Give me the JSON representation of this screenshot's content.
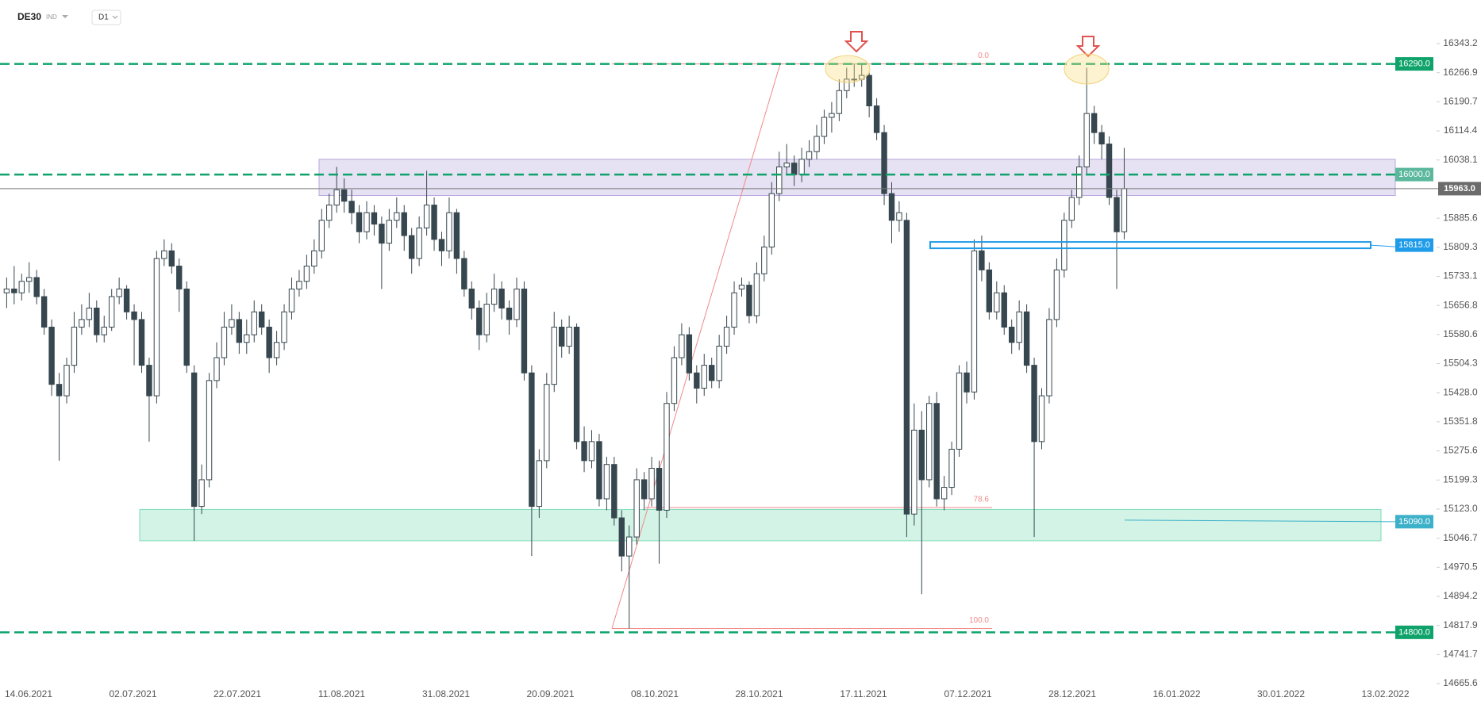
{
  "header": {
    "symbol": "DE30",
    "class": "IND",
    "timeframe": "D1"
  },
  "chart_data": {
    "type": "candlestick",
    "ylim": [
      14665.6,
      16343.2
    ],
    "yticks": [
      16343.2,
      16266.9,
      16190.7,
      16114.4,
      16038.1,
      15885.6,
      15809.3,
      15733.1,
      15656.8,
      15580.6,
      15504.3,
      {
        "value": 15428,
        "label": "15428.0"
      },
      15351.8,
      15275.6,
      15199.3,
      {
        "value": 15123,
        "label": "15123.0"
      },
      15046.7,
      14970.5,
      14894.2,
      14817.9,
      14741.7,
      14665.6
    ],
    "xtick_labels": [
      "14.06.2021",
      "02.07.2021",
      "22.07.2021",
      "11.08.2021",
      "31.08.2021",
      "20.09.2021",
      "08.10.2021",
      "28.10.2021",
      "17.11.2021",
      "07.12.2021",
      "28.12.2021",
      "16.01.2022",
      "30.01.2022",
      "13.02.2022"
    ],
    "up_color": "#ffffff",
    "down_color": "#37474f",
    "edge_color": "#37474f",
    "levels": [
      {
        "price": 16290,
        "label": "16290.0",
        "color": "#0fa36b",
        "line": "dashed"
      },
      {
        "price": 16000,
        "label": "16000.0",
        "color": "#5cb89d",
        "line": "dashed"
      },
      {
        "price": 15963,
        "label": "15963.0",
        "color": "#6b6b6b",
        "line": "current"
      },
      {
        "price": 15815,
        "label": "15815.0",
        "color": "#1e9be9",
        "line": "box"
      },
      {
        "price": 15090,
        "label": "15090.0",
        "color": "#3db1c9",
        "line": "short"
      },
      {
        "price": 14800,
        "label": "14800.0",
        "color": "#0fa36b",
        "line": "dashed"
      }
    ],
    "zones": [
      {
        "low": 15945,
        "high": 16040,
        "color": "#b6a8dc"
      },
      {
        "low": 15040,
        "high": 15122,
        "color": "#7fdcb8"
      }
    ],
    "fib": [
      {
        "label": "0.0",
        "price": 16290
      },
      {
        "label": "78.6",
        "price": 15127
      },
      {
        "label": "100.0",
        "price": 14810
      }
    ],
    "ohlc": [
      [
        15690,
        15730,
        15650,
        15700
      ],
      [
        15700,
        15760,
        15660,
        15690
      ],
      [
        15690,
        15740,
        15670,
        15720
      ],
      [
        15720,
        15770,
        15690,
        15730
      ],
      [
        15730,
        15750,
        15660,
        15680
      ],
      [
        15680,
        15700,
        15580,
        15600
      ],
      [
        15600,
        15620,
        15420,
        15450
      ],
      [
        15450,
        15480,
        15250,
        15420
      ],
      [
        15420,
        15520,
        15400,
        15500
      ],
      [
        15500,
        15640,
        15480,
        15600
      ],
      [
        15600,
        15660,
        15580,
        15620
      ],
      [
        15620,
        15690,
        15600,
        15650
      ],
      [
        15650,
        15670,
        15560,
        15580
      ],
      [
        15580,
        15630,
        15560,
        15600
      ],
      [
        15600,
        15700,
        15590,
        15680
      ],
      [
        15680,
        15730,
        15660,
        15700
      ],
      [
        15700,
        15710,
        15620,
        15640
      ],
      [
        15640,
        15660,
        15500,
        15620
      ],
      [
        15620,
        15640,
        15480,
        15500
      ],
      [
        15500,
        15520,
        15300,
        15420
      ],
      [
        15420,
        15800,
        15400,
        15780
      ],
      [
        15780,
        15830,
        15760,
        15800
      ],
      [
        15800,
        15820,
        15740,
        15760
      ],
      [
        15760,
        15780,
        15640,
        15700
      ],
      [
        15700,
        15720,
        15480,
        15500
      ],
      [
        15480,
        15500,
        15040,
        15130
      ],
      [
        15130,
        15240,
        15110,
        15200
      ],
      [
        15200,
        15480,
        15180,
        15460
      ],
      [
        15460,
        15560,
        15440,
        15520
      ],
      [
        15520,
        15640,
        15500,
        15600
      ],
      [
        15600,
        15660,
        15580,
        15620
      ],
      [
        15620,
        15640,
        15530,
        15560
      ],
      [
        15560,
        15620,
        15530,
        15580
      ],
      [
        15580,
        15670,
        15560,
        15640
      ],
      [
        15640,
        15660,
        15580,
        15600
      ],
      [
        15600,
        15620,
        15480,
        15520
      ],
      [
        15520,
        15590,
        15500,
        15560
      ],
      [
        15560,
        15660,
        15540,
        15640
      ],
      [
        15640,
        15730,
        15620,
        15700
      ],
      [
        15700,
        15750,
        15680,
        15720
      ],
      [
        15720,
        15790,
        15700,
        15760
      ],
      [
        15760,
        15830,
        15740,
        15800
      ],
      [
        15800,
        15910,
        15780,
        15880
      ],
      [
        15880,
        15950,
        15860,
        15920
      ],
      [
        15920,
        16020,
        15900,
        15960
      ],
      [
        15960,
        15990,
        15900,
        15930
      ],
      [
        15930,
        15960,
        15870,
        15900
      ],
      [
        15900,
        15920,
        15820,
        15850
      ],
      [
        15850,
        15930,
        15830,
        15900
      ],
      [
        15900,
        15920,
        15840,
        15870
      ],
      [
        15870,
        15890,
        15700,
        15820
      ],
      [
        15820,
        15910,
        15800,
        15880
      ],
      [
        15880,
        15940,
        15860,
        15900
      ],
      [
        15900,
        15920,
        15800,
        15840
      ],
      [
        15840,
        15860,
        15740,
        15780
      ],
      [
        15780,
        15890,
        15760,
        15860
      ],
      [
        15860,
        16010,
        15840,
        15920
      ],
      [
        15920,
        15940,
        15800,
        15830
      ],
      [
        15830,
        15850,
        15760,
        15800
      ],
      [
        15800,
        15940,
        15780,
        15900
      ],
      [
        15900,
        15910,
        15740,
        15780
      ],
      [
        15780,
        15800,
        15680,
        15700
      ],
      [
        15700,
        15720,
        15620,
        15650
      ],
      [
        15650,
        15670,
        15540,
        15580
      ],
      [
        15580,
        15690,
        15560,
        15660
      ],
      [
        15660,
        15740,
        15640,
        15700
      ],
      [
        15700,
        15720,
        15620,
        15650
      ],
      [
        15650,
        15670,
        15580,
        15620
      ],
      [
        15620,
        15730,
        15600,
        15700
      ],
      [
        15700,
        15720,
        15460,
        15480
      ],
      [
        15480,
        15500,
        15000,
        15130
      ],
      [
        15130,
        15280,
        15100,
        15250
      ],
      [
        15250,
        15480,
        15230,
        15450
      ],
      [
        15450,
        15640,
        15430,
        15600
      ],
      [
        15600,
        15620,
        15520,
        15550
      ],
      [
        15550,
        15630,
        15530,
        15600
      ],
      [
        15600,
        15610,
        15280,
        15300
      ],
      [
        15300,
        15340,
        15220,
        15250
      ],
      [
        15250,
        15330,
        15230,
        15300
      ],
      [
        15300,
        15320,
        15130,
        15150
      ],
      [
        15150,
        15260,
        15120,
        15240
      ],
      [
        15240,
        15260,
        15080,
        15100
      ],
      [
        15100,
        15120,
        14960,
        15000
      ],
      [
        15000,
        15080,
        14810,
        15050
      ],
      [
        15050,
        15230,
        15030,
        15200
      ],
      [
        15200,
        15220,
        15120,
        15150
      ],
      [
        15150,
        15260,
        15130,
        15230
      ],
      [
        15230,
        15250,
        14980,
        15120
      ],
      [
        15120,
        15430,
        15100,
        15400
      ],
      [
        15400,
        15550,
        15380,
        15520
      ],
      [
        15520,
        15610,
        15500,
        15580
      ],
      [
        15580,
        15600,
        15460,
        15480
      ],
      [
        15480,
        15500,
        15400,
        15440
      ],
      [
        15440,
        15530,
        15420,
        15500
      ],
      [
        15500,
        15520,
        15440,
        15460
      ],
      [
        15460,
        15580,
        15440,
        15550
      ],
      [
        15550,
        15630,
        15530,
        15600
      ],
      [
        15600,
        15720,
        15580,
        15690
      ],
      [
        15700,
        15730,
        15680,
        15710
      ],
      [
        15710,
        15720,
        15610,
        15630
      ],
      [
        15630,
        15770,
        15610,
        15740
      ],
      [
        15740,
        15840,
        15720,
        15810
      ],
      [
        15810,
        15980,
        15790,
        15950
      ],
      [
        15950,
        16060,
        15930,
        16020
      ],
      [
        16020,
        16080,
        16000,
        16030
      ],
      [
        16030,
        16050,
        15970,
        16000
      ],
      [
        16000,
        16070,
        15980,
        16040
      ],
      [
        16040,
        16090,
        16020,
        16060
      ],
      [
        16060,
        16130,
        16040,
        16100
      ],
      [
        16100,
        16170,
        16080,
        16150
      ],
      [
        16150,
        16190,
        16110,
        16160
      ],
      [
        16160,
        16250,
        16140,
        16220
      ],
      [
        16220,
        16280,
        16200,
        16250
      ],
      [
        16250,
        16290,
        16230,
        16250
      ],
      [
        16250,
        16290,
        16230,
        16260
      ],
      [
        16260,
        16270,
        16150,
        16180
      ],
      [
        16180,
        16200,
        16090,
        16110
      ],
      [
        16110,
        16130,
        15920,
        15950
      ],
      [
        15950,
        15980,
        15820,
        15880
      ],
      [
        15880,
        15930,
        15850,
        15900
      ],
      [
        15880,
        15900,
        15050,
        15110
      ],
      [
        15110,
        15400,
        15080,
        15330
      ],
      [
        15330,
        15380,
        14900,
        15200
      ],
      [
        15200,
        15420,
        15180,
        15400
      ],
      [
        15400,
        15430,
        15130,
        15150
      ],
      [
        15150,
        15210,
        15120,
        15180
      ],
      [
        15180,
        15300,
        15160,
        15280
      ],
      [
        15280,
        15500,
        15260,
        15480
      ],
      [
        15480,
        15510,
        15400,
        15430
      ],
      [
        15430,
        15830,
        15410,
        15800
      ],
      [
        15800,
        15840,
        15720,
        15750
      ],
      [
        15750,
        15770,
        15620,
        15640
      ],
      [
        15640,
        15720,
        15620,
        15690
      ],
      [
        15690,
        15710,
        15580,
        15600
      ],
      [
        15600,
        15620,
        15530,
        15560
      ],
      [
        15560,
        15670,
        15540,
        15640
      ],
      [
        15640,
        15660,
        15480,
        15500
      ],
      [
        15500,
        15520,
        15050,
        15300
      ],
      [
        15300,
        15440,
        15280,
        15420
      ],
      [
        15420,
        15650,
        15400,
        15620
      ],
      [
        15620,
        15780,
        15600,
        15750
      ],
      [
        15750,
        15900,
        15730,
        15880
      ],
      [
        15880,
        15960,
        15860,
        15940
      ],
      [
        15940,
        16050,
        15920,
        16020
      ],
      [
        16020,
        16280,
        16000,
        16160
      ],
      [
        16160,
        16180,
        16080,
        16110
      ],
      [
        16110,
        16130,
        16040,
        16080
      ],
      [
        16080,
        16100,
        15920,
        15940
      ],
      [
        15940,
        15960,
        15700,
        15850
      ],
      [
        15850,
        16070,
        15830,
        15963
      ]
    ]
  }
}
